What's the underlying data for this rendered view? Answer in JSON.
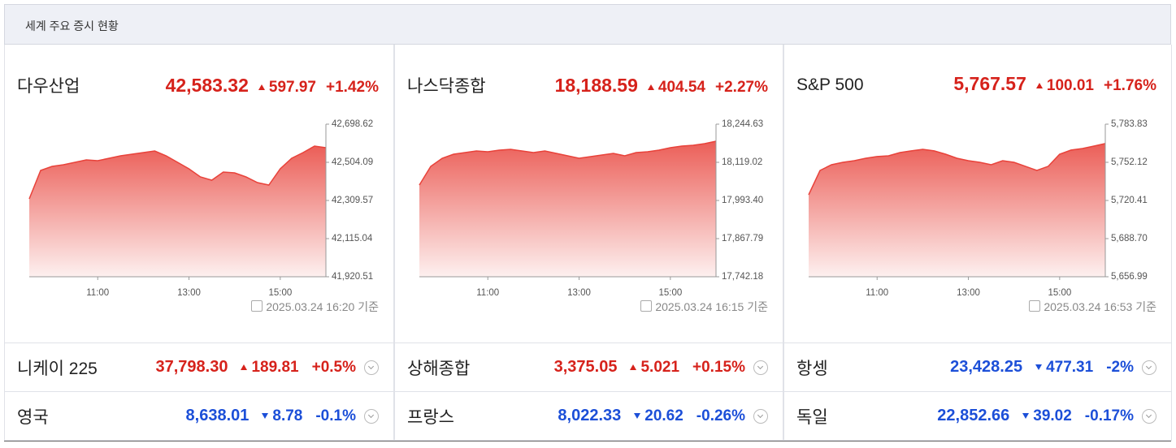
{
  "header": {
    "title": "세계 주요 증시 현황"
  },
  "panels": [
    {
      "name": "다우산업",
      "price": "42,583.32",
      "change": "597.97",
      "rate": "+1.42%",
      "direction": "up",
      "timestamp": "2025.03.24 16:20",
      "basis": "기준",
      "chart": {
        "type": "area",
        "color": "#e8423a",
        "x": [
          "09:30",
          "09:45",
          "10:00",
          "10:15",
          "10:30",
          "10:45",
          "11:00",
          "11:15",
          "11:30",
          "11:45",
          "12:00",
          "12:15",
          "12:30",
          "12:45",
          "13:00",
          "13:15",
          "13:30",
          "13:45",
          "14:00",
          "14:15",
          "14:30",
          "14:45",
          "15:00",
          "15:15",
          "15:30",
          "15:45",
          "16:00"
        ],
        "values": [
          42317.8,
          42462.7,
          42483.4,
          42491.7,
          42504.1,
          42516.5,
          42512.4,
          42524.8,
          42537.2,
          42545.5,
          42553.8,
          42562.0,
          42537.2,
          42504.1,
          42471.0,
          42429.6,
          42413.0,
          42454.4,
          42450.3,
          42429.6,
          42400.6,
          42388.2,
          42471.0,
          42524.8,
          42553.8,
          42586.9,
          42578.6
        ],
        "xlim": [
          "09:30",
          "16:00"
        ],
        "xticks": [
          "11:00",
          "13:00",
          "15:00"
        ],
        "ylim": [
          41920.51,
          42698.62
        ],
        "yticks": [
          {
            "value": 41920.51,
            "label": "41,920.51"
          },
          {
            "value": 42115.04,
            "label": "42,115.04"
          },
          {
            "value": 42309.57,
            "label": "42,309.57"
          },
          {
            "value": 42504.09,
            "label": "42,504.09"
          },
          {
            "value": 42698.62,
            "label": "42,698.62"
          }
        ]
      }
    },
    {
      "name": "나스닥종합",
      "price": "18,188.59",
      "change": "404.54",
      "rate": "+2.27%",
      "direction": "up",
      "timestamp": "2025.03.24 16:15",
      "basis": "기준",
      "chart": {
        "type": "area",
        "color": "#e8423a",
        "x": [
          "09:30",
          "09:45",
          "10:00",
          "10:15",
          "10:30",
          "10:45",
          "11:00",
          "11:15",
          "11:30",
          "11:45",
          "12:00",
          "12:15",
          "12:30",
          "12:45",
          "13:00",
          "13:15",
          "13:30",
          "13:45",
          "14:00",
          "14:15",
          "14:30",
          "14:45",
          "15:00",
          "15:15",
          "15:30",
          "15:45",
          "16:00"
        ],
        "values": [
          18044.2,
          18105.7,
          18132.4,
          18145.8,
          18151.1,
          18156.5,
          18153.8,
          18159.1,
          18161.8,
          18156.5,
          18151.1,
          18156.5,
          18148.4,
          18140.4,
          18132.4,
          18137.7,
          18143.1,
          18148.4,
          18140.4,
          18151.1,
          18153.8,
          18159.1,
          18167.1,
          18172.5,
          18175.2,
          18180.5,
          18188.5
        ],
        "xlim": [
          "09:30",
          "16:00"
        ],
        "xticks": [
          "11:00",
          "13:00",
          "15:00"
        ],
        "ylim": [
          17742.18,
          18244.63
        ],
        "yticks": [
          {
            "value": 17742.18,
            "label": "17,742.18"
          },
          {
            "value": 17867.79,
            "label": "17,867.79"
          },
          {
            "value": 17993.4,
            "label": "17,993.40"
          },
          {
            "value": 18119.02,
            "label": "18,119.02"
          },
          {
            "value": 18244.63,
            "label": "18,244.63"
          }
        ]
      }
    },
    {
      "name": "S&P 500",
      "price": "5,767.57",
      "change": "100.01",
      "rate": "+1.76%",
      "direction": "up",
      "timestamp": "2025.03.24 16:53",
      "basis": "기준",
      "chart": {
        "type": "area",
        "color": "#e8423a",
        "x": [
          "09:30",
          "09:45",
          "10:00",
          "10:15",
          "10:30",
          "10:45",
          "11:00",
          "11:15",
          "11:30",
          "11:45",
          "12:00",
          "12:15",
          "12:30",
          "12:45",
          "13:00",
          "13:15",
          "13:30",
          "13:45",
          "14:00",
          "14:15",
          "14:30",
          "14:45",
          "15:00",
          "15:15",
          "15:30",
          "15:45",
          "16:00"
        ],
        "values": [
          5725.1,
          5745.4,
          5750.1,
          5752.1,
          5753.5,
          5755.5,
          5756.9,
          5757.5,
          5760.2,
          5761.6,
          5762.9,
          5761.6,
          5758.9,
          5755.5,
          5753.5,
          5752.1,
          5750.1,
          5753.5,
          5752.1,
          5748.8,
          5745.4,
          5748.8,
          5758.9,
          5762.3,
          5763.6,
          5765.6,
          5767.7
        ],
        "xlim": [
          "09:30",
          "16:00"
        ],
        "xticks": [
          "11:00",
          "13:00",
          "15:00"
        ],
        "ylim": [
          5656.99,
          5783.83
        ],
        "yticks": [
          {
            "value": 5656.99,
            "label": "5,656.99"
          },
          {
            "value": 5688.7,
            "label": "5,688.70"
          },
          {
            "value": 5720.41,
            "label": "5,720.41"
          },
          {
            "value": 5752.12,
            "label": "5,752.12"
          },
          {
            "value": 5783.83,
            "label": "5,783.83"
          }
        ]
      }
    }
  ],
  "tickers": [
    [
      {
        "name": "니케이 225",
        "price": "37,798.30",
        "change": "189.81",
        "rate": "+0.5%",
        "direction": "up"
      },
      {
        "name": "상해종합",
        "price": "3,375.05",
        "change": "5.021",
        "rate": "+0.15%",
        "direction": "up"
      },
      {
        "name": "항셍",
        "price": "23,428.25",
        "change": "477.31",
        "rate": "-2%",
        "direction": "down"
      }
    ],
    [
      {
        "name": "영국",
        "price": "8,638.01",
        "change": "8.78",
        "rate": "-0.1%",
        "direction": "down"
      },
      {
        "name": "프랑스",
        "price": "8,022.33",
        "change": "20.62",
        "rate": "-0.26%",
        "direction": "down"
      },
      {
        "name": "독일",
        "price": "22,852.66",
        "change": "39.02",
        "rate": "-0.17%",
        "direction": "down"
      }
    ]
  ]
}
